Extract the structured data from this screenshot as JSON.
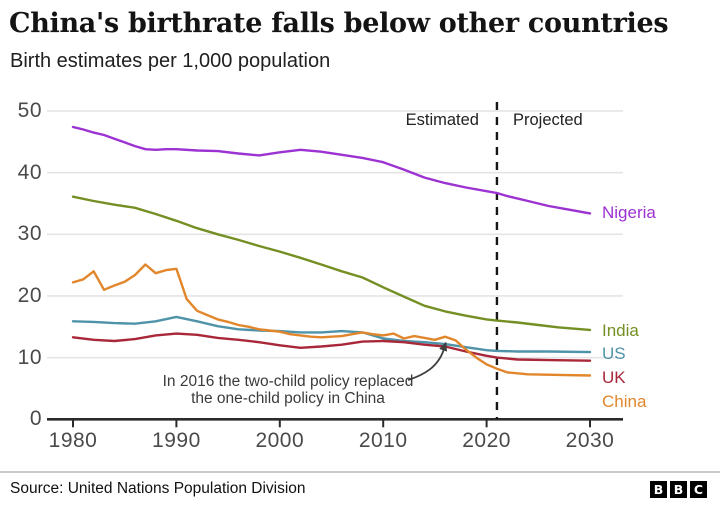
{
  "header": {
    "title": "China's birthrate falls below other countries",
    "subtitle": "Birth estimates per 1,000 population"
  },
  "chart_data": {
    "type": "line",
    "title": "China's birthrate falls below other countries",
    "subtitle": "Birth estimates per 1,000 population",
    "xlabel": "",
    "ylabel": "",
    "x_ticks": [
      1980,
      1990,
      2000,
      2010,
      2020,
      2030
    ],
    "y_ticks": [
      0,
      10,
      20,
      30,
      40,
      50
    ],
    "xlim": [
      1978,
      2033
    ],
    "ylim": [
      0,
      52
    ],
    "grid": "horizontal",
    "legend_position": "right-end-labels",
    "divider_year": 2021,
    "region_labels": {
      "left": "Estimated",
      "right": "Projected"
    },
    "annotation": {
      "line1": "In 2016 the two-child policy replaced",
      "line2": "the one-child policy in China",
      "arrow_target": {
        "year": 2016,
        "value": 13.4
      }
    },
    "series": [
      {
        "name": "Nigeria",
        "color": "#9c32d2",
        "points": [
          [
            1980,
            47.4
          ],
          [
            1981,
            47.0
          ],
          [
            1982,
            46.5
          ],
          [
            1983,
            46.1
          ],
          [
            1984,
            45.5
          ],
          [
            1985,
            44.9
          ],
          [
            1986,
            44.3
          ],
          [
            1987,
            43.8
          ],
          [
            1988,
            43.7
          ],
          [
            1989,
            43.8
          ],
          [
            1990,
            43.8
          ],
          [
            1992,
            43.6
          ],
          [
            1994,
            43.5
          ],
          [
            1996,
            43.1
          ],
          [
            1998,
            42.8
          ],
          [
            2000,
            43.3
          ],
          [
            2002,
            43.7
          ],
          [
            2004,
            43.4
          ],
          [
            2006,
            42.9
          ],
          [
            2008,
            42.4
          ],
          [
            2010,
            41.7
          ],
          [
            2012,
            40.5
          ],
          [
            2014,
            39.2
          ],
          [
            2016,
            38.3
          ],
          [
            2018,
            37.6
          ],
          [
            2020,
            37.0
          ],
          [
            2021,
            36.7
          ],
          [
            2022,
            36.2
          ],
          [
            2024,
            35.4
          ],
          [
            2026,
            34.6
          ],
          [
            2028,
            34.0
          ],
          [
            2030,
            33.4
          ]
        ]
      },
      {
        "name": "India",
        "color": "#748f23",
        "points": [
          [
            1980,
            36.1
          ],
          [
            1982,
            35.4
          ],
          [
            1984,
            34.8
          ],
          [
            1986,
            34.3
          ],
          [
            1988,
            33.3
          ],
          [
            1990,
            32.2
          ],
          [
            1992,
            31.0
          ],
          [
            1994,
            30.0
          ],
          [
            1996,
            29.1
          ],
          [
            1998,
            28.1
          ],
          [
            2000,
            27.2
          ],
          [
            2002,
            26.2
          ],
          [
            2004,
            25.1
          ],
          [
            2006,
            24.0
          ],
          [
            2008,
            23.0
          ],
          [
            2010,
            21.4
          ],
          [
            2012,
            19.9
          ],
          [
            2014,
            18.4
          ],
          [
            2016,
            17.5
          ],
          [
            2018,
            16.8
          ],
          [
            2020,
            16.2
          ],
          [
            2021,
            16.0
          ],
          [
            2023,
            15.7
          ],
          [
            2025,
            15.3
          ],
          [
            2027,
            14.9
          ],
          [
            2030,
            14.5
          ]
        ]
      },
      {
        "name": "US",
        "color": "#4f93a9",
        "points": [
          [
            1980,
            15.9
          ],
          [
            1982,
            15.8
          ],
          [
            1984,
            15.6
          ],
          [
            1986,
            15.5
          ],
          [
            1988,
            15.9
          ],
          [
            1990,
            16.6
          ],
          [
            1992,
            15.9
          ],
          [
            1994,
            15.1
          ],
          [
            1996,
            14.6
          ],
          [
            1998,
            14.4
          ],
          [
            2000,
            14.3
          ],
          [
            2002,
            14.1
          ],
          [
            2004,
            14.1
          ],
          [
            2006,
            14.3
          ],
          [
            2008,
            14.1
          ],
          [
            2010,
            13.1
          ],
          [
            2012,
            12.7
          ],
          [
            2014,
            12.5
          ],
          [
            2016,
            12.2
          ],
          [
            2018,
            11.7
          ],
          [
            2020,
            11.2
          ],
          [
            2021,
            11.1
          ],
          [
            2023,
            11.0
          ],
          [
            2026,
            11.0
          ],
          [
            2030,
            10.9
          ]
        ]
      },
      {
        "name": "UK",
        "color": "#a8283a",
        "points": [
          [
            1980,
            13.3
          ],
          [
            1982,
            12.9
          ],
          [
            1984,
            12.7
          ],
          [
            1986,
            13.0
          ],
          [
            1988,
            13.6
          ],
          [
            1990,
            13.9
          ],
          [
            1992,
            13.7
          ],
          [
            1994,
            13.2
          ],
          [
            1996,
            12.9
          ],
          [
            1998,
            12.5
          ],
          [
            2000,
            12.0
          ],
          [
            2002,
            11.6
          ],
          [
            2004,
            11.8
          ],
          [
            2006,
            12.1
          ],
          [
            2008,
            12.6
          ],
          [
            2010,
            12.7
          ],
          [
            2012,
            12.5
          ],
          [
            2014,
            12.1
          ],
          [
            2016,
            11.8
          ],
          [
            2018,
            11.0
          ],
          [
            2020,
            10.3
          ],
          [
            2021,
            10.0
          ],
          [
            2023,
            9.7
          ],
          [
            2026,
            9.6
          ],
          [
            2030,
            9.5
          ]
        ]
      },
      {
        "name": "China",
        "color": "#e2862c",
        "points": [
          [
            1980,
            22.2
          ],
          [
            1981,
            22.7
          ],
          [
            1982,
            24.0
          ],
          [
            1983,
            21.0
          ],
          [
            1984,
            21.7
          ],
          [
            1985,
            22.3
          ],
          [
            1986,
            23.4
          ],
          [
            1987,
            25.1
          ],
          [
            1988,
            23.7
          ],
          [
            1989,
            24.2
          ],
          [
            1990,
            24.4
          ],
          [
            1991,
            19.5
          ],
          [
            1992,
            17.6
          ],
          [
            1993,
            16.9
          ],
          [
            1994,
            16.2
          ],
          [
            1995,
            15.8
          ],
          [
            1996,
            15.3
          ],
          [
            1997,
            15.0
          ],
          [
            1998,
            14.6
          ],
          [
            1999,
            14.4
          ],
          [
            2000,
            14.2
          ],
          [
            2001,
            13.8
          ],
          [
            2002,
            13.6
          ],
          [
            2003,
            13.4
          ],
          [
            2004,
            13.3
          ],
          [
            2005,
            13.4
          ],
          [
            2006,
            13.5
          ],
          [
            2007,
            13.8
          ],
          [
            2008,
            14.1
          ],
          [
            2009,
            13.8
          ],
          [
            2010,
            13.6
          ],
          [
            2011,
            13.9
          ],
          [
            2012,
            13.1
          ],
          [
            2013,
            13.5
          ],
          [
            2014,
            13.2
          ],
          [
            2015,
            12.9
          ],
          [
            2016,
            13.4
          ],
          [
            2017,
            12.8
          ],
          [
            2018,
            11.3
          ],
          [
            2019,
            10.0
          ],
          [
            2020,
            8.9
          ],
          [
            2021,
            8.2
          ],
          [
            2022,
            7.6
          ],
          [
            2024,
            7.3
          ],
          [
            2027,
            7.2
          ],
          [
            2030,
            7.1
          ]
        ]
      }
    ]
  },
  "footer": {
    "source": "Source: United Nations Population Division",
    "bbc": [
      "B",
      "B",
      "C"
    ]
  }
}
